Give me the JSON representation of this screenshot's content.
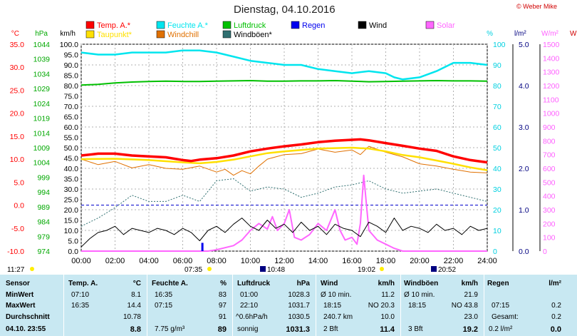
{
  "title": "Dienstag, 04.10.2016",
  "copyright": "© Weber Mike",
  "legend": [
    {
      "label": "Temp. A.*",
      "color": "#ff0000"
    },
    {
      "label": "Feuchte A.*",
      "color": "#00e5ee"
    },
    {
      "label": "Luftdruck",
      "color": "#00c000"
    },
    {
      "label": "Regen",
      "color": "#0000ee"
    },
    {
      "label": "Wind",
      "color": "#000000"
    },
    {
      "label": "Solar",
      "color": "#ff66ff"
    },
    {
      "label": "Taupunkt*",
      "color": "#ffe000"
    },
    {
      "label": "Windchill",
      "color": "#e07000"
    },
    {
      "label": "Windböen*",
      "color": "#2f6f70"
    }
  ],
  "axis_units": {
    "temp": "°C",
    "pressure": "hPa",
    "wind": "km/h",
    "humidity": "%",
    "rain": "l/m²",
    "solar": "W/m²",
    "extra": "W"
  },
  "sun_times": {
    "sunrise_left": "11:27",
    "sunrise": "07:35",
    "noon": "10:48",
    "sunset": "19:02",
    "moon": "20:52"
  },
  "chart_data": {
    "type": "line",
    "title": "Dienstag, 04.10.2016",
    "x_ticks": [
      "00:00",
      "02:00",
      "04:00",
      "06:00",
      "08:00",
      "10:00",
      "12:00",
      "14:00",
      "16:00",
      "18:00",
      "20:00",
      "22:00",
      "24:00"
    ],
    "axes": {
      "temp_c": {
        "ticks": [
          "35.0",
          "30.0",
          "25.0",
          "20.0",
          "15.0",
          "10.0",
          "5.0",
          "0.0",
          "-5.0",
          "-10.0"
        ],
        "range": [
          -10,
          35
        ]
      },
      "pressure_hpa": {
        "ticks": [
          "1044",
          "1039",
          "1034",
          "1029",
          "1024",
          "1019",
          "1014",
          "1009",
          "1004",
          "999",
          "994",
          "989",
          "984",
          "979",
          "974"
        ],
        "range": [
          974,
          1044
        ]
      },
      "wind_kmh": {
        "ticks": [
          "100.0",
          "95.0",
          "90.0",
          "85.0",
          "80.0",
          "75.0",
          "70.0",
          "65.0",
          "60.0",
          "55.0",
          "50.0",
          "45.0",
          "40.0",
          "35.0",
          "30.0",
          "25.0",
          "20.0",
          "15.0",
          "10.0",
          "5.0",
          "0.0"
        ],
        "range": [
          0,
          100
        ]
      },
      "humidity_pct": {
        "ticks": [
          "100",
          "90",
          "80",
          "70",
          "60",
          "50",
          "40",
          "30",
          "20",
          "10",
          "0"
        ],
        "range": [
          0,
          100
        ]
      },
      "rain_lm2": {
        "ticks": [
          "5.0",
          "4.0",
          "3.0",
          "2.0",
          "1.0",
          "0.0"
        ],
        "range": [
          0,
          5
        ]
      },
      "solar_wm2": {
        "ticks": [
          "1500",
          "1400",
          "1300",
          "1200",
          "1100",
          "1000",
          "900",
          "800",
          "700",
          "600",
          "500",
          "400",
          "300",
          "200",
          "100",
          "0"
        ],
        "range": [
          0,
          1500
        ]
      }
    },
    "series": [
      {
        "name": "Temp. A.*",
        "axis": "temp_c",
        "x": [
          0,
          1,
          2,
          3,
          4,
          5,
          6,
          6.5,
          7,
          8,
          9,
          10,
          11,
          12,
          13,
          14,
          15,
          16,
          16.5,
          17,
          18,
          19,
          20,
          21,
          22,
          23,
          24
        ],
        "values": [
          10.8,
          11.2,
          11.2,
          10.8,
          10.6,
          10.4,
          9.8,
          9.6,
          9.9,
          10.2,
          10.8,
          11.7,
          12.3,
          12.8,
          13.2,
          13.7,
          14.0,
          14.2,
          14.3,
          14.1,
          13.5,
          12.9,
          12.3,
          11.8,
          10.6,
          9.8,
          9.3
        ]
      },
      {
        "name": "Taupunkt*",
        "axis": "temp_c",
        "x": [
          0,
          2,
          4,
          6,
          7,
          8,
          9,
          10,
          11,
          12,
          13,
          14,
          15,
          16,
          17,
          18,
          19,
          20,
          21,
          22,
          23,
          24
        ],
        "values": [
          10.0,
          10.1,
          9.8,
          9.3,
          9.1,
          9.4,
          9.9,
          10.6,
          11.3,
          11.7,
          12.0,
          12.3,
          12.4,
          12.5,
          12.3,
          11.7,
          10.9,
          10.4,
          9.7,
          9.0,
          8.2,
          7.6
        ]
      },
      {
        "name": "Windchill",
        "axis": "temp_c",
        "x": [
          0,
          1,
          2,
          3,
          4,
          5,
          6,
          7,
          8,
          8.5,
          9,
          9.5,
          10,
          10.5,
          11,
          12,
          13,
          14,
          15,
          16,
          16.5,
          17,
          18,
          19,
          20,
          21,
          22,
          23,
          24
        ],
        "values": [
          10.0,
          8.8,
          9.5,
          8.1,
          8.8,
          8.0,
          7.8,
          8.5,
          7.2,
          7.8,
          6.5,
          7.5,
          6.8,
          8.5,
          10.0,
          11.0,
          11.2,
          12.2,
          11.5,
          12.0,
          11.0,
          12.8,
          11.5,
          10.5,
          9.0,
          8.5,
          7.8,
          7.2,
          7.0
        ]
      },
      {
        "name": "Feuchte A.*",
        "axis": "humidity_pct",
        "x": [
          0,
          1,
          2,
          3,
          4,
          5,
          6,
          7,
          8,
          9,
          10,
          11,
          12,
          13,
          14,
          15,
          16,
          17,
          18,
          18.5,
          19,
          20,
          21,
          22,
          23,
          24
        ],
        "values": [
          96,
          95,
          95,
          96,
          96,
          96,
          97,
          97,
          96,
          94,
          92,
          91,
          90,
          90,
          88,
          87,
          86,
          87,
          86,
          84,
          83,
          84,
          87,
          91,
          91,
          90
        ]
      },
      {
        "name": "Luftdruck",
        "axis": "pressure_hpa",
        "x": [
          0,
          1,
          2,
          3,
          4,
          5,
          6,
          7,
          8,
          9,
          10,
          11,
          12,
          13,
          14,
          15,
          16,
          17,
          18,
          19,
          20,
          21,
          22,
          23,
          24
        ],
        "values": [
          1030.2,
          1030.4,
          1030.9,
          1031.2,
          1031.4,
          1031.5,
          1031.4,
          1031.4,
          1031.5,
          1031.6,
          1031.7,
          1031.5,
          1031.5,
          1031.6,
          1031.6,
          1031.7,
          1031.5,
          1031.3,
          1031.4,
          1031.5,
          1031.6,
          1031.7,
          1031.6,
          1031.6,
          1031.5
        ]
      },
      {
        "name": "Windböen*",
        "axis": "wind_kmh",
        "x": [
          0,
          1,
          2,
          3,
          4,
          5,
          6,
          7,
          8,
          9,
          10,
          11,
          12,
          13,
          14,
          15,
          16,
          17,
          18,
          19,
          20,
          21,
          22,
          23,
          24
        ],
        "values": [
          12,
          16,
          21,
          27,
          24,
          24,
          27,
          24,
          34,
          35,
          29,
          31,
          30,
          26,
          28,
          31,
          32,
          34,
          30,
          28,
          29,
          30,
          28,
          26,
          24
        ]
      },
      {
        "name": "Wind",
        "axis": "wind_kmh",
        "x": [
          0,
          0.5,
          1,
          1.5,
          2,
          2.5,
          3,
          3.5,
          4,
          4.5,
          5,
          5.5,
          6,
          6.5,
          7,
          7.5,
          8,
          8.5,
          9,
          9.5,
          10,
          10.5,
          11,
          11.5,
          12,
          12.5,
          13,
          13.5,
          14,
          14.5,
          15,
          15.5,
          16,
          16.5,
          17,
          17.5,
          18,
          18.5,
          19,
          19.5,
          20,
          20.5,
          21,
          21.5,
          22,
          22.5,
          23,
          23.5,
          24
        ],
        "values": [
          2,
          6,
          9,
          10,
          12,
          8,
          11,
          10,
          9,
          11,
          10,
          8,
          11,
          9,
          5,
          10,
          12,
          9,
          13,
          16,
          12,
          10,
          15,
          11,
          13,
          9,
          14,
          10,
          12,
          8,
          13,
          11,
          10,
          7,
          14,
          12,
          9,
          16,
          10,
          12,
          11,
          9,
          13,
          10,
          11,
          8,
          12,
          10,
          11
        ]
      },
      {
        "name": "Solar",
        "axis": "solar_wm2",
        "x": [
          0,
          7.5,
          8,
          9,
          9.5,
          10,
          10.5,
          11,
          11.3,
          11.6,
          12,
          12.3,
          12.6,
          13,
          13.5,
          14,
          14.5,
          15,
          15.3,
          15.6,
          16,
          16.3,
          16.5,
          16.7,
          17,
          17.5,
          18,
          18.5,
          19,
          24
        ],
        "values": [
          0,
          0,
          10,
          40,
          80,
          150,
          200,
          160,
          250,
          150,
          200,
          300,
          100,
          80,
          120,
          200,
          150,
          300,
          150,
          80,
          100,
          50,
          200,
          550,
          150,
          80,
          50,
          20,
          0,
          0
        ]
      },
      {
        "name": "Regen",
        "axis": "rain_lm2",
        "x": [
          7.1,
          7.15
        ],
        "values": [
          0.2,
          0.2
        ]
      }
    ],
    "reference_line": {
      "axis": "temp_c",
      "value": 0
    },
    "grid": true
  },
  "stats": {
    "sensor": {
      "header": "Sensor",
      "rows": [
        "MinWert",
        "MaxWert",
        "Durchschnitt",
        "04.10. 23:55"
      ]
    },
    "temp": {
      "header": "Temp. A.",
      "unit": "°C",
      "rows": [
        [
          "07:10",
          "8.1"
        ],
        [
          "16:35",
          "14.4"
        ],
        [
          "",
          "10.78"
        ],
        [
          "",
          "8.8"
        ]
      ]
    },
    "humidity": {
      "header": "Feuchte A.",
      "unit": "%",
      "rows": [
        [
          "16:35",
          "83"
        ],
        [
          "07:15",
          "97"
        ],
        [
          "",
          "91"
        ],
        [
          "7.75 g/m³",
          "89"
        ]
      ]
    },
    "pressure": {
      "header": "Luftdruck",
      "unit": "hPa",
      "rows": [
        [
          "01:00",
          "1028.3"
        ],
        [
          "22:10",
          "1031.7"
        ],
        [
          "^0.6hPa/h",
          "1030.5"
        ],
        [
          "sonnig",
          "1031.3"
        ]
      ]
    },
    "wind": {
      "header": "Wind",
      "unit": "km/h",
      "rows": [
        [
          "Ø 10 min.",
          "11.2"
        ],
        [
          "18:15",
          "NO 20.3"
        ],
        [
          "240.7 km",
          "10.0"
        ],
        [
          "2 Bft",
          "11.4"
        ]
      ]
    },
    "gust": {
      "header": "Windböen",
      "unit": "km/h",
      "rows": [
        [
          "Ø 10 min.",
          "21.9"
        ],
        [
          "18:15",
          "NO 43.8"
        ],
        [
          "",
          "23.0"
        ],
        [
          "3 Bft",
          "19.2"
        ]
      ]
    },
    "rain": {
      "header": "Regen",
      "unit": "l/m²",
      "rows": [
        [
          "",
          ""
        ],
        [
          "07:15",
          "0.2"
        ],
        [
          "Gesamt:",
          "0.2"
        ],
        [
          "0.2 l/m²",
          "0.0"
        ]
      ]
    }
  }
}
